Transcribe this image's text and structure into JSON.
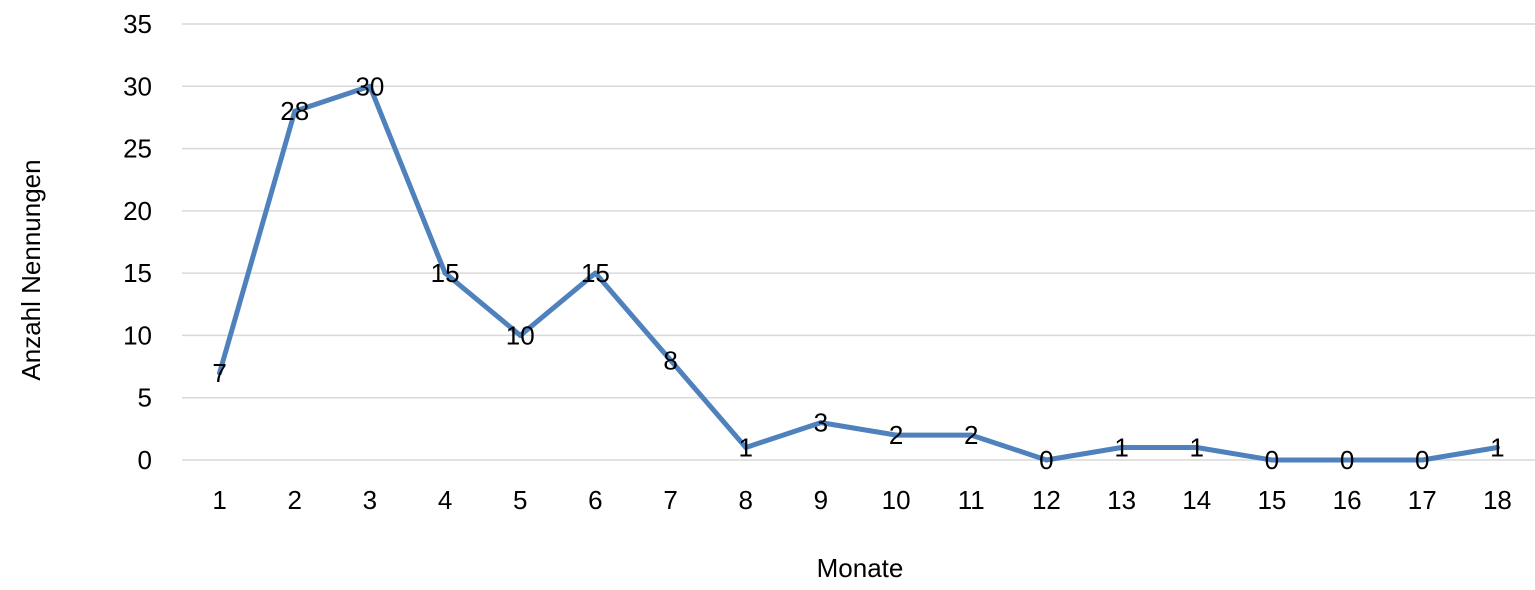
{
  "chart_data": {
    "type": "line",
    "categories": [
      "1",
      "2",
      "3",
      "4",
      "5",
      "6",
      "7",
      "8",
      "9",
      "10",
      "11",
      "12",
      "13",
      "14",
      "15",
      "16",
      "17",
      "18"
    ],
    "series": [
      {
        "values": [
          7,
          28,
          30,
          15,
          10,
          15,
          8,
          1,
          3,
          2,
          2,
          0,
          1,
          1,
          0,
          0,
          0,
          1
        ]
      }
    ],
    "xlabel": "Monate",
    "ylabel": "Anzahl Nennungen",
    "ylim": [
      0,
      35
    ],
    "yticks": [
      0,
      5,
      10,
      15,
      20,
      25,
      30,
      35
    ],
    "grid": "horizontal",
    "legend": "none",
    "line_color": "#4f81bd",
    "grid_color": "#d9d9d9",
    "data_labels": true
  }
}
